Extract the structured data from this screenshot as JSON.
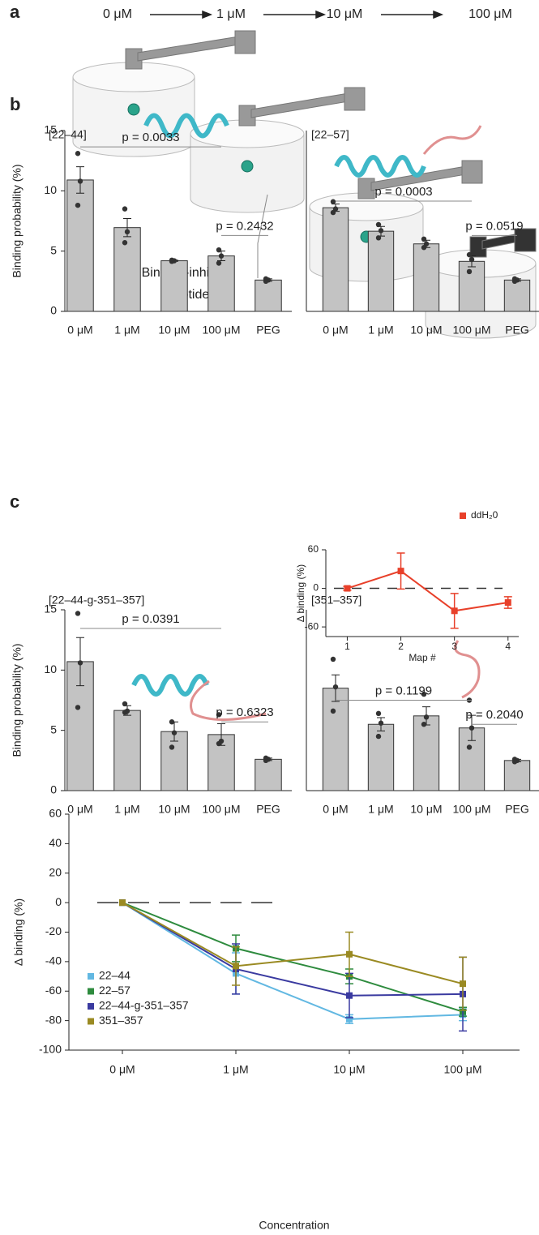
{
  "panel_labels": [
    "a",
    "b",
    "c"
  ],
  "schematic": {
    "concentrations": [
      "0 μM",
      "1 μM",
      "10 μM",
      "100 μM"
    ],
    "label": [
      "Binding-inhibitor",
      "peptide"
    ]
  },
  "chart_data": [
    {
      "type": "bar",
      "title": "[22–44]",
      "ylabel": "Binding probability (%)",
      "categories": [
        "0 μM",
        "1 μM",
        "10 μM",
        "100 μM",
        "PEG"
      ],
      "values": [
        10.9,
        6.95,
        4.2,
        4.6,
        2.6
      ],
      "errors": [
        1.1,
        0.75,
        0.05,
        0.4,
        0.1
      ],
      "points": [
        [
          13.1,
          10.8,
          8.8
        ],
        [
          8.5,
          6.6,
          5.7
        ],
        [
          4.25,
          4.2,
          4.15
        ],
        [
          5.1,
          4.6,
          4.0
        ],
        [
          2.7,
          2.6,
          2.5
        ]
      ],
      "color": "#c3c3c3",
      "ylim": [
        0,
        15
      ],
      "yticks": [
        0,
        5,
        10,
        15
      ],
      "annotations": [
        {
          "text": "p = 0.0033",
          "from": 0,
          "to": 3,
          "y": 13.65
        },
        {
          "text": "p = 0.2432",
          "from": 3,
          "to": 4,
          "y": 6.3
        }
      ]
    },
    {
      "type": "bar",
      "title": "[22–57]",
      "categories": [
        "0 μM",
        "1 μM",
        "10 μM",
        "100 μM",
        "PEG"
      ],
      "values": [
        8.6,
        6.65,
        5.6,
        4.15,
        2.6
      ],
      "errors": [
        0.3,
        0.4,
        0.3,
        0.45,
        0.1
      ],
      "points": [
        [
          9.1,
          8.5,
          8.2
        ],
        [
          7.2,
          6.7,
          6.1
        ],
        [
          6.0,
          5.6,
          5.3
        ],
        [
          4.7,
          4.3,
          3.3
        ],
        [
          2.7,
          2.6,
          2.5
        ]
      ],
      "color": "#c3c3c3",
      "ylim": [
        0,
        15
      ],
      "annotations": [
        {
          "text": "p = 0.0003",
          "from": 0,
          "to": 3,
          "y": 9.15
        },
        {
          "text": "p = 0.0519",
          "from": 3,
          "to": 4,
          "y": 6.3
        }
      ]
    },
    {
      "type": "bar",
      "title": "[22–44-g-351–357]",
      "ylabel": "Binding probability (%)",
      "categories": [
        "0 μM",
        "1 μM",
        "10 μM",
        "100 μM",
        "PEG"
      ],
      "values": [
        10.7,
        6.65,
        4.9,
        4.65,
        2.6
      ],
      "errors": [
        2.0,
        0.4,
        0.8,
        0.9,
        0.1
      ],
      "points": [
        [
          14.7,
          10.6,
          6.9
        ],
        [
          7.2,
          6.6,
          6.5
        ],
        [
          5.7,
          4.8,
          3.6
        ],
        [
          6.3,
          4.1,
          3.9
        ],
        [
          2.7,
          2.6,
          2.5
        ]
      ],
      "color": "#c3c3c3",
      "ylim": [
        0,
        15
      ],
      "yticks": [
        0,
        5,
        10,
        15
      ],
      "annotations": [
        {
          "text": "p = 0.0391",
          "from": 0,
          "to": 3,
          "y": 13.45
        },
        {
          "text": "p = 0.6323",
          "from": 3,
          "to": 4,
          "y": 5.7
        }
      ]
    },
    {
      "type": "bar",
      "title": "[351–357]",
      "categories": [
        "0 μM",
        "1 μM",
        "10 μM",
        "100 μM",
        "PEG"
      ],
      "values": [
        8.5,
        5.5,
        6.2,
        5.2,
        2.5
      ],
      "errors": [
        1.1,
        0.55,
        0.75,
        1.05,
        0.1
      ],
      "points": [
        [
          10.9,
          8.6,
          6.6
        ],
        [
          6.4,
          5.6,
          4.5
        ],
        [
          8.0,
          6.1,
          5.5
        ],
        [
          7.5,
          5.2,
          3.6
        ],
        [
          2.6,
          2.5,
          2.4
        ]
      ],
      "color": "#c3c3c3",
      "ylim": [
        0,
        15
      ],
      "annotations": [
        {
          "text": "p = 0.1199",
          "from": 0,
          "to": 3,
          "y": 7.5
        },
        {
          "text": "p = 0.2040",
          "from": 3,
          "to": 4,
          "y": 5.5
        }
      ]
    },
    {
      "type": "line",
      "ylabel": "Δ binding (%)",
      "xlabel": "Concentration",
      "categories": [
        "0 μM",
        "1 μM",
        "10 μM",
        "100 μM"
      ],
      "ylim": [
        -100,
        60
      ],
      "yticks": [
        -100,
        -80,
        -60,
        -40,
        -20,
        0,
        20,
        40,
        60
      ],
      "legend": "lower left",
      "series": [
        {
          "name": "22–44",
          "color": "#62b8e2",
          "values": [
            0,
            -48,
            -79,
            -76
          ],
          "errors": [
            0,
            14,
            3,
            4
          ]
        },
        {
          "name": "22–57",
          "color": "#2e8b3e",
          "values": [
            0,
            -31,
            -50,
            -74
          ],
          "errors": [
            0,
            9,
            5,
            3
          ]
        },
        {
          "name": "22–44-g-351–357",
          "color": "#3a3aa0",
          "values": [
            0,
            -45,
            -63,
            -62
          ],
          "errors": [
            0,
            17,
            15,
            25
          ]
        },
        {
          "name": "351–357",
          "color": "#9a8a22",
          "values": [
            0,
            -43,
            -35,
            -55
          ],
          "errors": [
            0,
            13,
            15,
            18
          ]
        }
      ]
    },
    {
      "type": "line",
      "ylabel": "Δ binding (%)",
      "xlabel": "Map #",
      "x": [
        1,
        2,
        3,
        4
      ],
      "xlim": [
        0.6,
        4.2
      ],
      "xticks": [
        1,
        2,
        3,
        4
      ],
      "ylim": [
        -75,
        60
      ],
      "yticks": [
        -60,
        0,
        60
      ],
      "legend": "upper right",
      "series": [
        {
          "name": "ddH₂0",
          "color": "#e8402a",
          "values": [
            0,
            27,
            -35,
            -22
          ],
          "errors": [
            3,
            28,
            27,
            9
          ]
        }
      ]
    }
  ]
}
